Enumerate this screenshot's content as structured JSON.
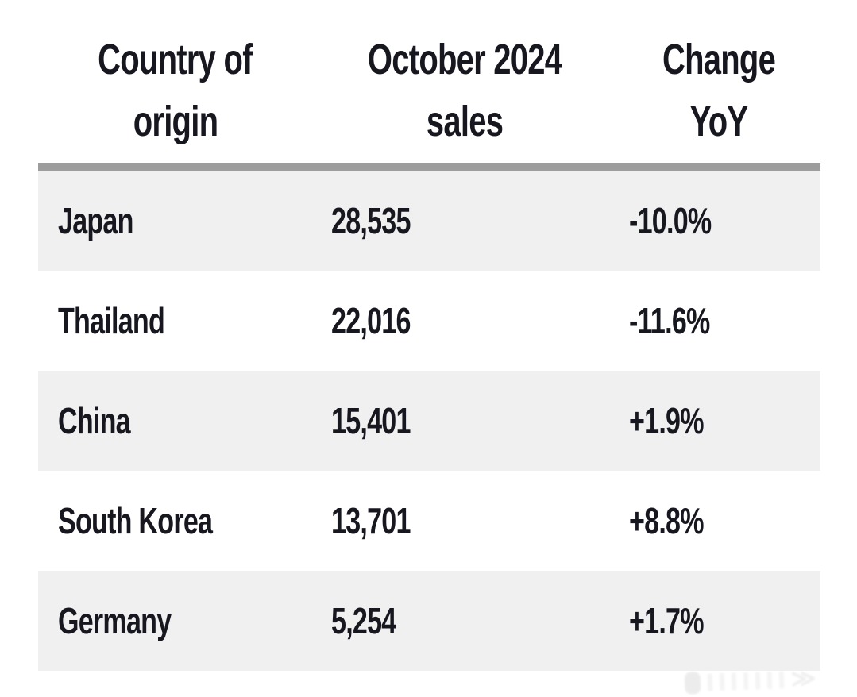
{
  "colors": {
    "background": "#ffffff",
    "text": "#17171f",
    "divider_bar": "#9d9d9d",
    "row_alternate": "#f0f1f1"
  },
  "table": {
    "columns": [
      {
        "line1": "Country of",
        "line2": "origin"
      },
      {
        "line1": "October 2024",
        "line2": "sales"
      },
      {
        "line1": "Change",
        "line2": "YoY"
      }
    ],
    "rows": [
      {
        "country": "Japan",
        "sales": "28,535",
        "change": "-10.0%"
      },
      {
        "country": "Thailand",
        "sales": "22,016",
        "change": "-11.6%"
      },
      {
        "country": "China",
        "sales": "15,401",
        "change": "+1.9%"
      },
      {
        "country": "South Korea",
        "sales": "13,701",
        "change": "+8.8%"
      },
      {
        "country": "Germany",
        "sales": "5,254",
        "change": "+1.7%"
      }
    ]
  },
  "chart_data": {
    "type": "table",
    "title": "",
    "columns": [
      "Country of origin",
      "October 2024 sales",
      "Change YoY"
    ],
    "categories": [
      "Japan",
      "Thailand",
      "China",
      "South Korea",
      "Germany"
    ],
    "series": [
      {
        "name": "October 2024 sales",
        "values": [
          28535,
          22016,
          15401,
          13701,
          5254
        ]
      },
      {
        "name": "Change YoY (%)",
        "values": [
          -10.0,
          -11.6,
          1.9,
          8.8,
          1.7
        ]
      }
    ]
  }
}
